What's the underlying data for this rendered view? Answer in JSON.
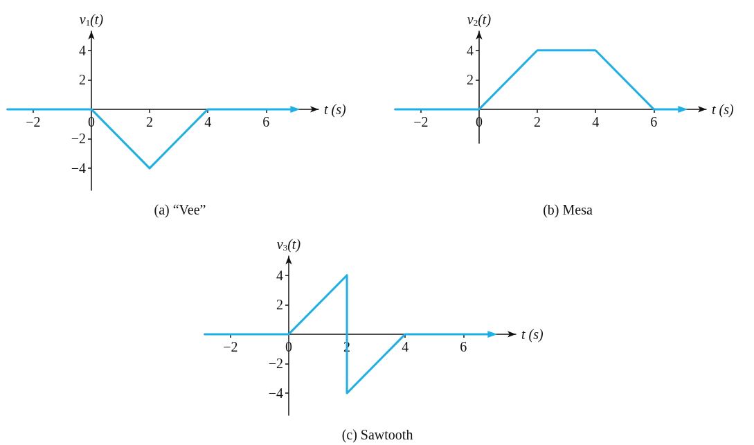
{
  "chart_data": [
    {
      "type": "line",
      "title": "(a) “Vee”",
      "xlabel": "t (s)",
      "ylabel": "v$_{1}$(t)",
      "x": [
        -2.9,
        0,
        2,
        4,
        7
      ],
      "series": [
        {
          "color": "#1cb0e8",
          "values": [
            0,
            0,
            -4,
            0,
            0
          ]
        }
      ],
      "xlim": [
        -2.9,
        7.8
      ],
      "ylim": [
        -5.5,
        5.3
      ],
      "xticks": [
        -2,
        0,
        2,
        4,
        6
      ],
      "yticks": [
        -4,
        -2,
        2,
        4
      ],
      "line_style": "solid"
    },
    {
      "type": "line",
      "title": "(b) Mesa",
      "xlabel": "t (s)",
      "ylabel": "v$_{2}$(t)",
      "x": [
        -2.9,
        0,
        2,
        4,
        6,
        7
      ],
      "series": [
        {
          "color": "#1cb0e8",
          "values": [
            0,
            0,
            4,
            4,
            0,
            0
          ]
        }
      ],
      "xlim": [
        -2.9,
        7.8
      ],
      "ylim": [
        -2.3,
        5.3
      ],
      "xticks": [
        -2,
        0,
        2,
        4,
        6
      ],
      "yticks": [
        2,
        4
      ],
      "line_style": "solid"
    },
    {
      "type": "line",
      "title": "(c) Sawtooth",
      "xlabel": "t (s)",
      "ylabel": "v$_{3}$(t)",
      "x": [
        -2.9,
        0,
        2,
        2,
        4,
        7
      ],
      "series": [
        {
          "color": "#1cb0e8",
          "values": [
            0,
            0,
            4,
            -4,
            0,
            0
          ]
        }
      ],
      "xlim": [
        -2.9,
        7.8
      ],
      "ylim": [
        -5.5,
        5.3
      ],
      "xticks": [
        -2,
        0,
        2,
        4,
        6
      ],
      "yticks": [
        -4,
        -2,
        2,
        4
      ],
      "line_style": "solid"
    }
  ]
}
